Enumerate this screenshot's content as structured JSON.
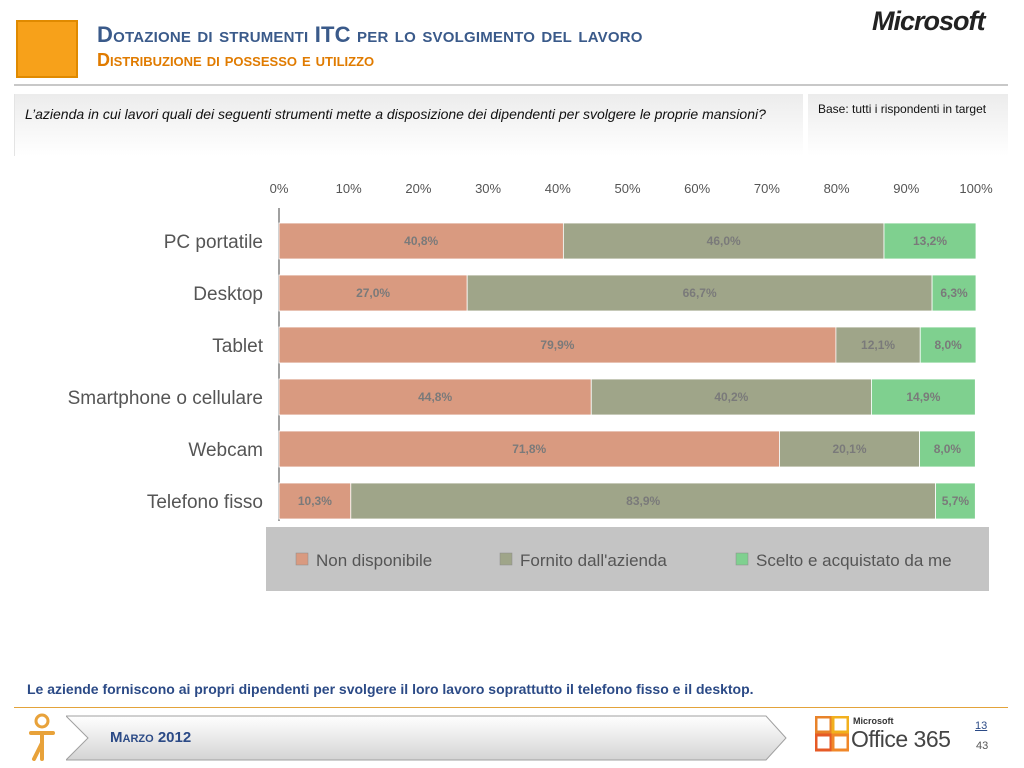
{
  "header": {
    "title": "Dotazione di strumenti ITC per lo svolgimento del lavoro",
    "subtitle": "Distribuzione di possesso e utilizzo",
    "brand": "Microsoft"
  },
  "question": {
    "text": "L’azienda in cui lavori quali dei seguenti strumenti mette a disposizione dei dipendenti per svolgere le proprie mansioni?",
    "base": "Base: tutti i rispondenti in target"
  },
  "chart_data": {
    "type": "bar",
    "orientation": "horizontal",
    "stacked": true,
    "categories": [
      "PC portatile",
      "Desktop",
      "Tablet",
      "Smartphone o cellulare",
      "Webcam",
      "Telefono fisso"
    ],
    "series": [
      {
        "name": "Non disponibile",
        "color": "#d99a80",
        "values": [
          40.8,
          27.0,
          79.9,
          44.8,
          71.8,
          10.3
        ],
        "labels": [
          "40,8%",
          "27,0%",
          "79,9%",
          "44,8%",
          "71,8%",
          "10,3%"
        ]
      },
      {
        "name": "Fornito dall'azienda",
        "color": "#9fa589",
        "values": [
          46.0,
          66.7,
          12.1,
          40.2,
          20.1,
          83.9
        ],
        "labels": [
          "46,0%",
          "66,7%",
          "12,1%",
          "40,2%",
          "20,1%",
          "83,9%"
        ]
      },
      {
        "name": "Scelto e acquistato da me",
        "color": "#7fd08f",
        "values": [
          13.2,
          6.3,
          8.0,
          14.9,
          8.0,
          5.7
        ],
        "labels": [
          "13,2%",
          "6,3%",
          "8,0%",
          "14,9%",
          "8,0%",
          "5,7%"
        ]
      }
    ],
    "xlim": [
      0,
      100
    ],
    "xticks": [
      "0%",
      "10%",
      "20%",
      "30%",
      "40%",
      "50%",
      "60%",
      "70%",
      "80%",
      "90%",
      "100%"
    ],
    "legend_position": "bottom",
    "grid": false
  },
  "conclusion": "Le aziende forniscono ai propri dipendenti per svolgere il loro lavoro soprattutto il telefono fisso e il desktop.",
  "footer": {
    "date": "Marzo 2012",
    "office_brand": "Microsoft",
    "office_product": "Office 365",
    "page": "13",
    "total_pages": "43"
  }
}
